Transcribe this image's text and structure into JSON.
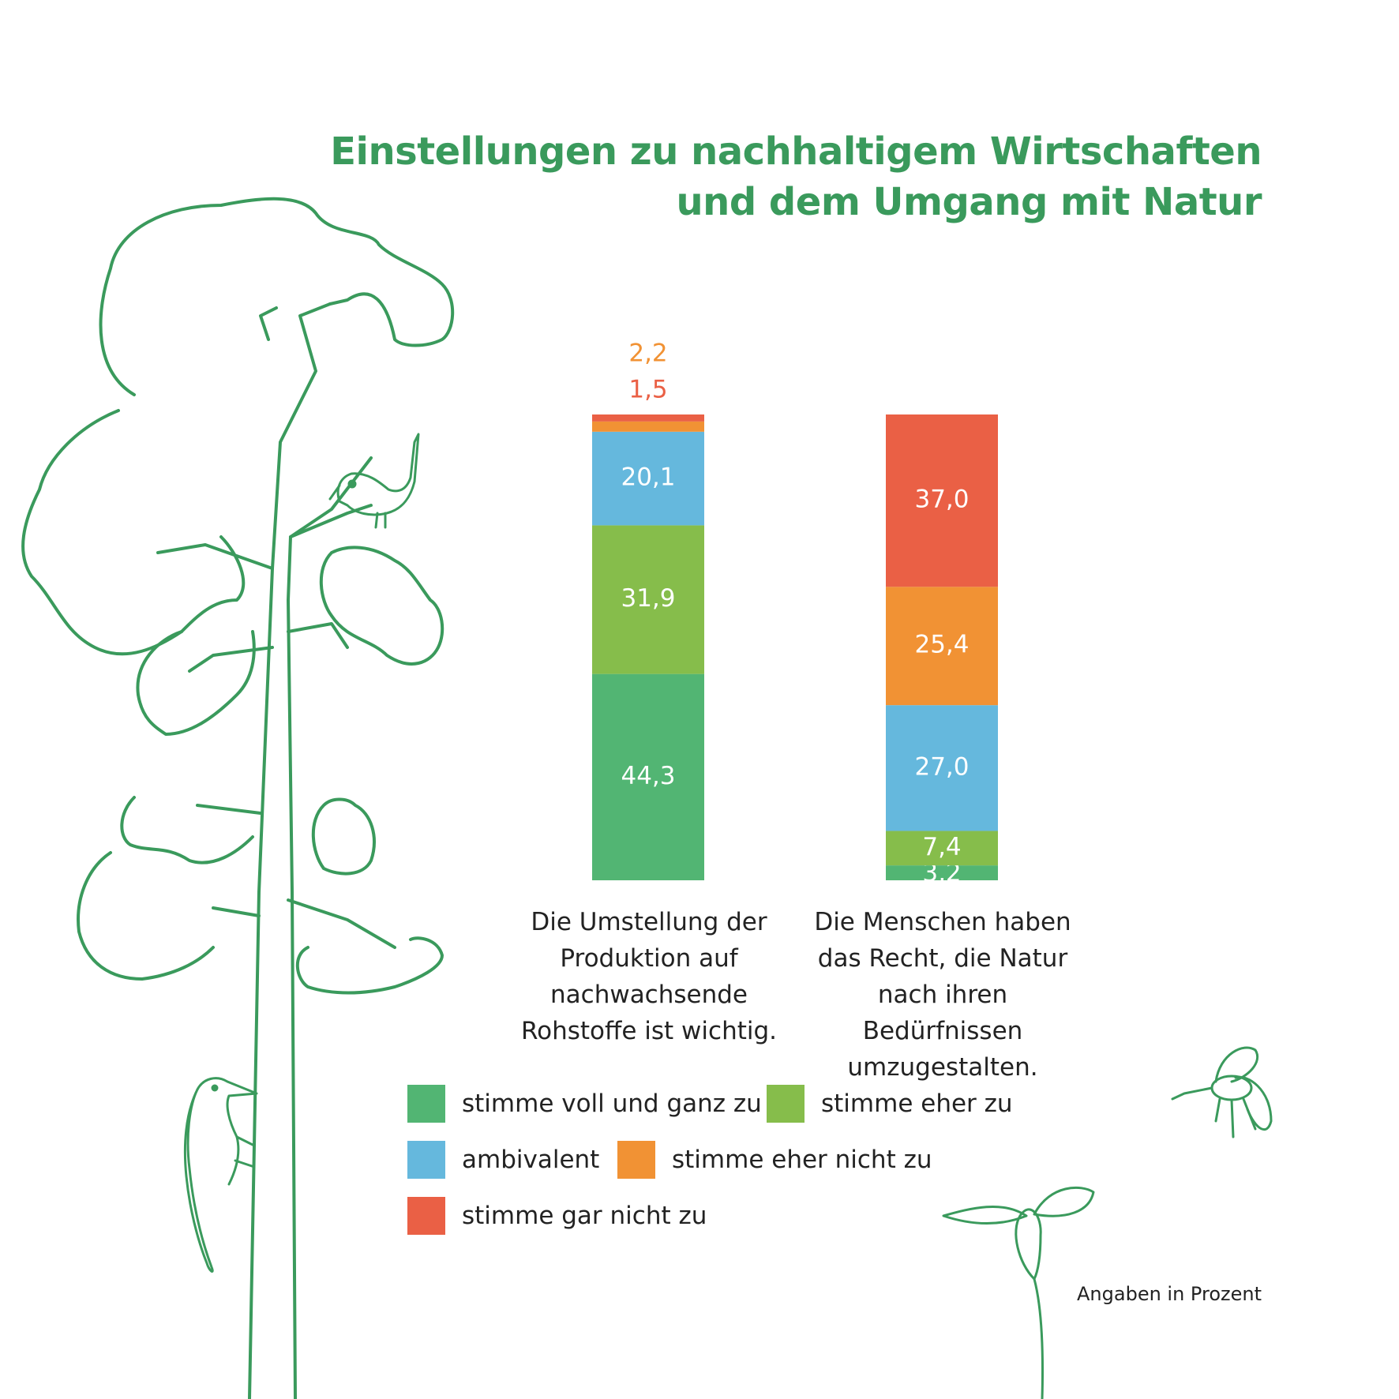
{
  "title_lines": [
    "Einstellungen zu nachhaltigem Wirtschaften",
    "und dem Umgang mit Natur"
  ],
  "note": "Angaben in Prozent",
  "colors": {
    "stimme voll und ganz zu": "#52b573",
    "stimme eher zu": "#86bd4b",
    "ambivalent": "#65b8dd",
    "stimme eher nicht zu": "#f19234",
    "stimme gar nicht zu": "#ea6045",
    "title": "#3a9a5c",
    "illustration": "#3a9a5c"
  },
  "legend": [
    {
      "label": "stimme voll und ganz zu",
      "color": "#52b573"
    },
    {
      "label": "stimme eher zu",
      "color": "#86bd4b"
    },
    {
      "label": "ambivalent",
      "color": "#65b8dd"
    },
    {
      "label": "stimme eher nicht zu",
      "color": "#f19234"
    },
    {
      "label": "stimme gar nicht zu",
      "color": "#ea6045"
    }
  ],
  "chart_data": {
    "type": "bar",
    "stacked": true,
    "title": "Einstellungen zu nachhaltigem Wirtschaften und dem Umgang mit Natur",
    "unit": "Angaben in Prozent",
    "categories": [
      [
        "Die Umstellung der",
        "Produktion auf",
        "nachwachsende",
        "Rohstoffe ist wichtig."
      ],
      [
        "Die Menschen haben",
        "das Recht, die Natur",
        "nach ihren Bedürfnissen",
        "umzugestalten."
      ]
    ],
    "series": [
      {
        "name": "stimme voll und ganz zu",
        "values": [
          44.3,
          3.2
        ],
        "labels": [
          "44,3",
          "3,2"
        ]
      },
      {
        "name": "stimme eher zu",
        "values": [
          31.9,
          7.4
        ],
        "labels": [
          "31,9",
          "7,4"
        ]
      },
      {
        "name": "ambivalent",
        "values": [
          20.1,
          27.0
        ],
        "labels": [
          "20,1",
          "27,0"
        ]
      },
      {
        "name": "stimme eher nicht zu",
        "values": [
          2.2,
          25.4
        ],
        "labels": [
          "2,2",
          "25,4"
        ]
      },
      {
        "name": "stimme gar nicht zu",
        "values": [
          1.5,
          37.0
        ],
        "labels": [
          "1,5",
          "37,0"
        ]
      }
    ],
    "ylim": [
      0,
      100
    ],
    "legend_position": "bottom",
    "grid": false
  }
}
